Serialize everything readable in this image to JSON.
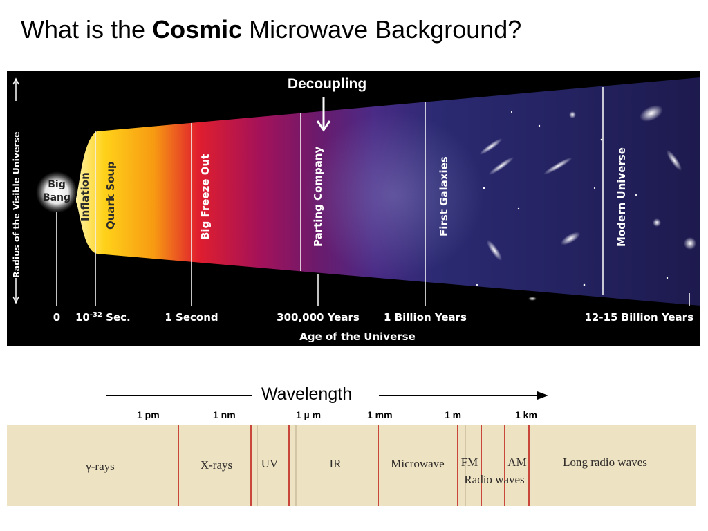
{
  "title": {
    "prefix": "What is the ",
    "bold": "Cosmic",
    "suffix": " Microwave Background?"
  },
  "timeline": {
    "decoupling_label": "Decoupling",
    "y_axis_label": "Radius of the Visible Universe",
    "x_axis_label": "Age of the Universe",
    "big_bang": [
      "Big",
      "Bang"
    ],
    "epochs": [
      "Inflation",
      "Quark Soup",
      "Big Freeze Out",
      "Parting Company",
      "First Galaxies",
      "Modern Universe"
    ],
    "ticks": {
      "zero": "0",
      "t_base": "10",
      "t_exp": "-32",
      "t_unit": " Sec.",
      "one_second": "1 Second",
      "three_hundred_k": "300,000 Years",
      "one_billion": "1 Billion Years",
      "modern": "12-15 Billion Years"
    }
  },
  "spectrum": {
    "wavelength_label": "Wavelength",
    "scale": [
      "1 pm",
      "1 nm",
      "1 µ m",
      "1 mm",
      "1 m",
      "1 km"
    ],
    "bands": [
      "γ-rays",
      "X-rays",
      "UV",
      "IR",
      "Microwave",
      "FM",
      "AM",
      "Radio waves",
      "Long radio waves"
    ]
  }
}
